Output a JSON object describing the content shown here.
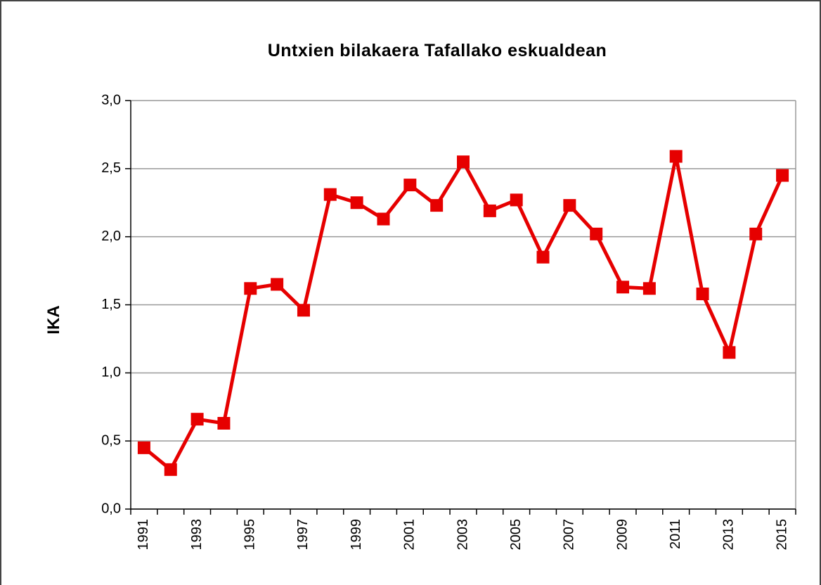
{
  "chart_data": {
    "type": "line",
    "title": "Untxien bilakaera Tafallako eskualdean",
    "y_label": "IKA",
    "categories": [
      "1991",
      null,
      "1993",
      null,
      "1995",
      null,
      "1997",
      null,
      "1999",
      null,
      "2001",
      null,
      "2003",
      null,
      "2005",
      null,
      "2007",
      null,
      "2009",
      null,
      "2011",
      null,
      "2013",
      null,
      "2015"
    ],
    "series": [
      {
        "color": "#e60000",
        "values": [
          0.45,
          0.29,
          0.66,
          0.63,
          1.62,
          1.65,
          1.46,
          2.31,
          2.25,
          2.13,
          2.38,
          2.23,
          2.55,
          2.19,
          2.27,
          1.85,
          2.23,
          2.02,
          1.63,
          1.62,
          2.59,
          1.58,
          1.15,
          2.02,
          2.45
        ]
      }
    ],
    "ylim": [
      0,
      3
    ],
    "yticks": [
      {
        "value": 0,
        "label": "0,0"
      },
      {
        "value": 0.5,
        "label": "0,5"
      },
      {
        "value": 1,
        "label": "1,0"
      },
      {
        "value": 1.5,
        "label": "1,5"
      },
      {
        "value": 2,
        "label": "2,0"
      },
      {
        "value": 2.5,
        "label": "2,5"
      },
      {
        "value": 3,
        "label": "3,0"
      }
    ],
    "grid": true
  }
}
